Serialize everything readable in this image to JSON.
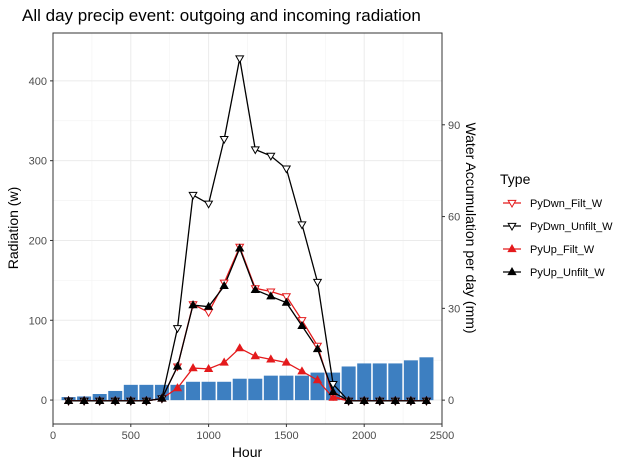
{
  "chart_data": {
    "type": "line",
    "title": "All day precip event: outgoing and incoming radiation",
    "xlabel": "Hour",
    "ylabel": "Radiation (w)",
    "y2label": "Water Accumulation per day (mm)",
    "xlim": [
      0,
      2500
    ],
    "ylim": [
      -30,
      460
    ],
    "y2lim": [
      -7.8,
      120
    ],
    "x_ticks": [
      0,
      500,
      1000,
      1500,
      2000,
      2500
    ],
    "y_ticks": [
      0,
      100,
      200,
      300,
      400
    ],
    "y2_ticks": [
      0,
      30,
      60,
      90
    ],
    "grid": true,
    "legend_position": "right",
    "legend_title": "Type",
    "bars": {
      "name": "Water Accumulation per day (mm)",
      "color": "#3d7fc1",
      "x": [
        100,
        200,
        300,
        400,
        500,
        600,
        700,
        800,
        900,
        1000,
        1100,
        1200,
        1300,
        1400,
        1500,
        1600,
        1700,
        1800,
        1900,
        2000,
        2100,
        2200,
        2300,
        2400
      ],
      "values": [
        1.0,
        1.2,
        2.0,
        3.0,
        5.0,
        5.0,
        5.0,
        5.0,
        6.0,
        6.0,
        6.0,
        7.0,
        7.0,
        8.0,
        8.0,
        8.0,
        9.0,
        9.0,
        11.0,
        12.0,
        12.0,
        12.0,
        13.0,
        14.0
      ]
    },
    "series": [
      {
        "name": "PyDwn_Filt_W",
        "color": "#e41a1c",
        "marker": "triangle-down",
        "x": [
          100,
          200,
          300,
          400,
          500,
          600,
          700,
          800,
          900,
          1000,
          1100,
          1200,
          1300,
          1400,
          1500,
          1600,
          1700,
          1800,
          1900,
          2000,
          2100,
          2200,
          2300,
          2400
        ],
        "values": [
          -1,
          -1,
          -1,
          -1,
          -1,
          -1,
          2,
          42,
          120,
          110,
          147,
          192,
          140,
          136,
          130,
          100,
          68,
          5,
          -1,
          -1,
          -1,
          -1,
          -1,
          -1
        ]
      },
      {
        "name": "PyDwn_Unfilt_W",
        "color": "#000000",
        "marker": "triangle-down",
        "x": [
          100,
          200,
          300,
          400,
          500,
          600,
          700,
          800,
          900,
          1000,
          1100,
          1200,
          1300,
          1400,
          1500,
          1600,
          1700,
          1800,
          1900,
          2000,
          2100,
          2200,
          2300,
          2400
        ],
        "values": [
          -1,
          -1,
          -1,
          -1,
          -1,
          -1,
          2,
          90,
          257,
          246,
          327,
          428,
          314,
          306,
          290,
          220,
          148,
          20,
          -1,
          -1,
          -1,
          -1,
          -1,
          -1
        ]
      },
      {
        "name": "PyUp_Filt_W",
        "color": "#e41a1c",
        "marker": "triangle-up",
        "x": [
          100,
          200,
          300,
          400,
          500,
          600,
          700,
          800,
          900,
          1000,
          1100,
          1200,
          1300,
          1400,
          1500,
          1600,
          1700,
          1800,
          1900,
          2000,
          2100,
          2200,
          2300,
          2400
        ],
        "values": [
          -1,
          -1,
          -1,
          -1,
          -1,
          -1,
          2,
          15,
          40,
          39,
          47,
          65,
          55,
          51,
          47,
          36,
          25,
          3,
          -1,
          -1,
          -1,
          -1,
          -1,
          -1
        ]
      },
      {
        "name": "PyUp_Unfilt_W",
        "color": "#000000",
        "marker": "triangle-up",
        "x": [
          100,
          200,
          300,
          400,
          500,
          600,
          700,
          800,
          900,
          1000,
          1100,
          1200,
          1300,
          1400,
          1500,
          1600,
          1700,
          1800,
          1900,
          2000,
          2100,
          2200,
          2300,
          2400
        ],
        "values": [
          -1,
          -1,
          -1,
          -1,
          -1,
          -1,
          2,
          42,
          119,
          117,
          143,
          190,
          138,
          130,
          122,
          93,
          64,
          10,
          -1,
          -1,
          -1,
          -1,
          -1,
          -1
        ]
      }
    ]
  }
}
